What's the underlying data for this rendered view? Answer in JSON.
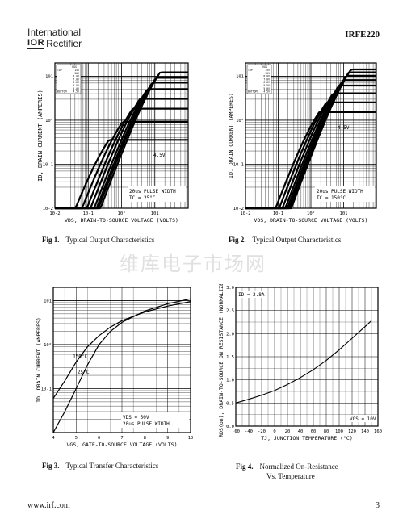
{
  "header": {
    "brand_line1": "International",
    "brand_logo": "IOR",
    "brand_line2": "Rectifier",
    "part_number": "IRFE220"
  },
  "watermark": "维库电子市场网",
  "footer": {
    "url": "www.irf.com",
    "page": "3"
  },
  "figures": [
    {
      "num": "Fig 1.",
      "caption": "Typical Output Characteristics"
    },
    {
      "num": "Fig 2.",
      "caption": "Typical Output Characteristics"
    },
    {
      "num": "Fig 3.",
      "caption": "Typical Transfer Characteristics"
    },
    {
      "num": "Fig 4.",
      "caption": "Normalized On-Resistance",
      "caption2": "Vs. Temperature"
    }
  ],
  "chart_data": [
    {
      "type": "line",
      "xscale": "log",
      "yscale": "log",
      "xlim": [
        0.01,
        100
      ],
      "ylim": [
        0.01,
        20
      ],
      "x_ticks": [
        "10-2",
        "10-1",
        "10°",
        "101"
      ],
      "y_ticks": [
        "101",
        "10°",
        "10-1",
        "10-2"
      ],
      "xlabel": "VDS, DRAIN-TO-SOURCE VOLTAGE (VOLTS)",
      "ylabel": "ID, DRAIN CURRENT (AMPERES)",
      "legend_header": [
        "",
        "VGS"
      ],
      "legend": [
        [
          "TOP",
          "15V"
        ],
        [
          "",
          "10V"
        ],
        [
          "",
          "8.0V"
        ],
        [
          "",
          "7.0V"
        ],
        [
          "",
          "6.0V"
        ],
        [
          "",
          "5.5V"
        ],
        [
          "",
          "5.0V"
        ],
        [
          "BOTTOM",
          "4.5V"
        ]
      ],
      "annotations": [
        "4.5V",
        "20us PULSE WIDTH",
        "TC = 25°C"
      ],
      "series": [
        {
          "name": "15V",
          "sat": 12
        },
        {
          "name": "10V",
          "sat": 9
        },
        {
          "name": "8.0V",
          "sat": 7
        },
        {
          "name": "7.0V",
          "sat": 5
        },
        {
          "name": "6.0V",
          "sat": 3
        },
        {
          "name": "5.5V",
          "sat": 1.8
        },
        {
          "name": "5.0V",
          "sat": 0.9
        },
        {
          "name": "4.5V",
          "sat": 0.35
        }
      ]
    },
    {
      "type": "line",
      "xscale": "log",
      "yscale": "log",
      "xlim": [
        0.01,
        100
      ],
      "ylim": [
        0.01,
        20
      ],
      "x_ticks": [
        "10-2",
        "10-1",
        "10°",
        "101"
      ],
      "y_ticks": [
        "101",
        "10°",
        "10-1",
        "10-2"
      ],
      "xlabel": "VDS, DRAIN-TO-SOURCE VOLTAGE (VOLTS)",
      "ylabel": "ID, DRAIN CURRENT (AMPERES)",
      "legend_header": [
        "",
        "VGS"
      ],
      "legend": [
        [
          "TOP",
          "15V"
        ],
        [
          "",
          "10V"
        ],
        [
          "",
          "8.0V"
        ],
        [
          "",
          "7.0V"
        ],
        [
          "",
          "6.0V"
        ],
        [
          "",
          "5.5V"
        ],
        [
          "",
          "5.0V"
        ],
        [
          "BOTTOM",
          "4.5V"
        ]
      ],
      "annotations": [
        "4.5V",
        "20us PULSE WIDTH",
        "TC = 150°C"
      ],
      "series": [
        {
          "name": "15V",
          "sat": 14
        },
        {
          "name": "10V",
          "sat": 12
        },
        {
          "name": "8.0V",
          "sat": 10
        },
        {
          "name": "7.0V",
          "sat": 8
        },
        {
          "name": "6.0V",
          "sat": 6
        },
        {
          "name": "5.5V",
          "sat": 4
        },
        {
          "name": "5.0V",
          "sat": 2.5
        },
        {
          "name": "4.5V",
          "sat": 1.5
        }
      ]
    },
    {
      "type": "line",
      "xscale": "linear",
      "yscale": "log",
      "xlim": [
        4,
        10
      ],
      "ylim": [
        0.01,
        20
      ],
      "x_ticks": [
        "4",
        "5",
        "6",
        "7",
        "8",
        "9",
        "10"
      ],
      "y_ticks": [
        "101",
        "10°",
        "10-1"
      ],
      "xlabel": "VGS, GATE-TO-SOURCE VOLTAGE (VOLTS)",
      "ylabel": "ID, DRAIN CURRENT (AMPERES)",
      "annotations": [
        "VDS = 50V",
        "20us PULSE WIDTH"
      ],
      "series": [
        {
          "name": "150°C",
          "x": [
            4,
            4.5,
            5,
            5.5,
            6,
            6.5,
            7,
            8,
            9,
            10
          ],
          "y": [
            0.06,
            0.15,
            0.4,
            0.9,
            1.6,
            2.5,
            3.5,
            5.5,
            7.5,
            9.5
          ]
        },
        {
          "name": "25°C",
          "x": [
            4,
            4.5,
            5,
            5.5,
            6,
            6.5,
            7,
            8,
            9,
            10
          ],
          "y": [
            0.01,
            0.03,
            0.1,
            0.35,
            1.0,
            2.0,
            3.2,
            5.8,
            8.5,
            11
          ]
        }
      ]
    },
    {
      "type": "line",
      "xscale": "linear",
      "yscale": "linear",
      "xlim": [
        -60,
        160
      ],
      "ylim": [
        0,
        3.0
      ],
      "x_ticks": [
        "-60",
        "-40",
        "-20",
        "0",
        "20",
        "40",
        "60",
        "80",
        "100",
        "120",
        "140",
        "160"
      ],
      "y_ticks": [
        "3.0",
        "2.5",
        "2.0",
        "1.5",
        "1.0",
        "0.5",
        "0.0"
      ],
      "xlabel": "TJ, JUNCTION TEMPERATURE (°C)",
      "ylabel": "RDS(on), DRAIN-TO-SOURCE ON RESISTANCE (NORMALIZED)",
      "annotations": [
        "ID = 2.8A",
        "VGS = 10V"
      ],
      "series": [
        {
          "name": "",
          "x": [
            -60,
            -40,
            -20,
            0,
            20,
            40,
            60,
            80,
            100,
            120,
            140,
            150
          ],
          "y": [
            0.5,
            0.58,
            0.67,
            0.77,
            0.9,
            1.05,
            1.22,
            1.42,
            1.65,
            1.9,
            2.15,
            2.28
          ]
        }
      ]
    }
  ]
}
